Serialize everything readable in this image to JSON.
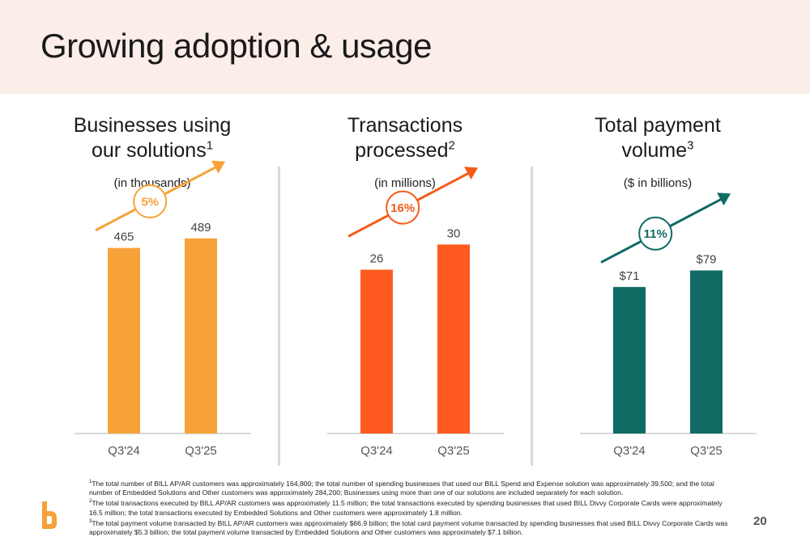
{
  "header": {
    "title": "Growing adoption & usage"
  },
  "chart_data": [
    {
      "type": "bar",
      "title": "Businesses using our solutions",
      "title_line1": "Businesses using",
      "title_line2": "our solutions",
      "footnote_ref": "1",
      "subtitle": "(in thousands)",
      "categories": [
        "Q3'24",
        "Q3'25"
      ],
      "values": [
        465,
        489
      ],
      "value_labels": [
        "465",
        "489"
      ],
      "growth_label": "5%",
      "ylim": [
        0,
        600
      ],
      "color": "#F7A238",
      "accent": "#F7A238",
      "grid": false
    },
    {
      "type": "bar",
      "title": "Transactions processed",
      "title_line1": "Transactions",
      "title_line2": "processed",
      "footnote_ref": "2",
      "subtitle": "(in millions)",
      "categories": [
        "Q3'24",
        "Q3'25"
      ],
      "values": [
        26,
        30
      ],
      "value_labels": [
        "26",
        "30"
      ],
      "growth_label": "16%",
      "ylim": [
        0,
        38
      ],
      "color": "#FF5A1F",
      "accent": "#F25C1B",
      "grid": false
    },
    {
      "type": "bar",
      "title": "Total payment volume",
      "title_line1": "Total payment",
      "title_line2": "volume",
      "footnote_ref": "3",
      "subtitle": "($ in billions)",
      "categories": [
        "Q3'24",
        "Q3'25"
      ],
      "values": [
        71,
        79
      ],
      "value_labels": [
        "$71",
        "$79"
      ],
      "growth_label": "11%",
      "ylim": [
        0,
        116
      ],
      "color": "#0F6B63",
      "accent": "#0F6B63",
      "grid": false
    }
  ],
  "footnotes": [
    {
      "ref": "1",
      "text": "The total number of BILL AP/AR customers was approximately 164,800; the total number of spending businesses that used our BILL Spend and Expense solution was approximately 39,500; and the total number of Embedded Solutions and Other customers was approximately 284,200; Businesses using more than one of our solutions  are included separately for each solution."
    },
    {
      "ref": "2",
      "text": "The total transactions executed by BILL AP/AR customers was approximately 11.5 million; the total transactions executed by spending businesses that used BILL Divvy Corporate Cards were approximately 16.5 million; the total transactions executed by Embedded Solutions and Other customers were approximately 1.8 million."
    },
    {
      "ref": "3",
      "text": "The total payment volume transacted by BILL AP/AR customers was approximately $66.9 billion; the total card payment volume transacted by spending businesses that used BILL Divvy Corporate Cards was approximately $5.3 billion; the total payment volume transacted by Embedded Solutions and Other customers was approximately $7.1 billion."
    }
  ],
  "page_number": "20",
  "colors": {
    "header_bg": "#FBEEE8",
    "axis": "#d9d9d9",
    "tick_text": "#555555"
  }
}
